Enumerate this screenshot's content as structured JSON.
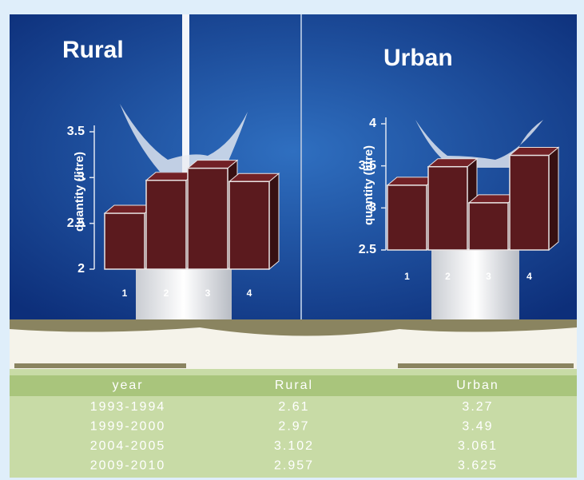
{
  "chart_data": [
    {
      "type": "bar3d",
      "title": "Rural",
      "y_label": "quantity (litre)",
      "categories": [
        "1",
        "2",
        "3",
        "4"
      ],
      "values": [
        2.61,
        2.97,
        3.102,
        2.957
      ],
      "color": "#5b1a1e",
      "ylim": [
        2,
        3.5
      ],
      "yticks": [
        2,
        2.5,
        3,
        3.5
      ]
    },
    {
      "type": "bar3d",
      "title": "Urban",
      "y_label": "quantity (litre)",
      "categories": [
        "1",
        "2",
        "3",
        "4"
      ],
      "values": [
        3.27,
        3.49,
        3.061,
        3.625
      ],
      "color": "#5b1a1e",
      "ylim": [
        2.5,
        4
      ],
      "yticks": [
        2.5,
        3,
        3.5,
        4
      ]
    }
  ],
  "table": {
    "header": [
      "year",
      "Rural",
      "Urban"
    ],
    "rows": [
      [
        "1993-1994",
        "2.61",
        "3.27"
      ],
      [
        "1999-2000",
        "2.97",
        "3.49"
      ],
      [
        "2004-2005",
        "3.102",
        "3.061"
      ],
      [
        "2009-2010",
        "2.957",
        "3.625"
      ]
    ]
  }
}
